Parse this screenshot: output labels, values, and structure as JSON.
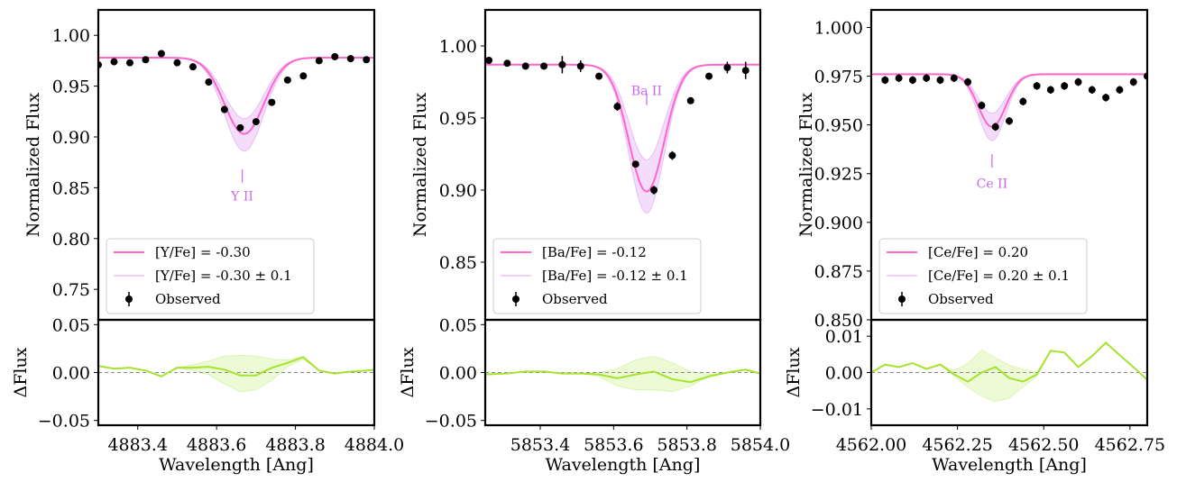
{
  "chart_data": [
    {
      "type": "line",
      "title": "",
      "xlabel": "Wavelength [Ang]",
      "ylabel": "Normalized Flux",
      "resid_ylabel": "ΔFlux",
      "xlim": [
        4883.3,
        4884.0
      ],
      "ylim": [
        0.72,
        1.025
      ],
      "resid_ylim": [
        -0.055,
        0.055
      ],
      "xticks": [
        "4883.4",
        "4883.6",
        "4883.8",
        "4884.0"
      ],
      "yticks": [
        "0.75",
        "0.80",
        "0.85",
        "0.90",
        "0.95",
        "1.00"
      ],
      "resid_yticks": [
        "−0.05",
        "0.00",
        "0.05"
      ],
      "annotation": {
        "label": "Y II",
        "x": 4883.665,
        "y_tick": [
          0.855,
          0.868
        ],
        "y_text": 0.842
      },
      "legend": [
        "[Y/Fe] = -0.30",
        "[Y/Fe] = -0.30 ± 0.1",
        "Observed"
      ],
      "model": {
        "continuum": 0.978,
        "center": 4883.67,
        "depth": 0.075,
        "sigma": 0.05,
        "depth_lo": 0.06,
        "depth_hi": 0.092
      },
      "observed": {
        "x": [
          4883.3,
          4883.34,
          4883.38,
          4883.42,
          4883.46,
          4883.5,
          4883.54,
          4883.58,
          4883.62,
          4883.66,
          4883.7,
          4883.74,
          4883.78,
          4883.82,
          4883.86,
          4883.9,
          4883.94,
          4883.98
        ],
        "y": [
          0.971,
          0.974,
          0.973,
          0.976,
          0.982,
          0.973,
          0.969,
          0.954,
          0.927,
          0.909,
          0.915,
          0.934,
          0.956,
          0.96,
          0.975,
          0.979,
          0.977,
          0.976
        ],
        "err": [
          0.002,
          0.002,
          0.002,
          0.002,
          0.002,
          0.002,
          0.002,
          0.002,
          0.002,
          0.002,
          0.002,
          0.002,
          0.002,
          0.002,
          0.002,
          0.002,
          0.002,
          0.002
        ]
      },
      "residual": {
        "x": [
          4883.3,
          4883.34,
          4883.38,
          4883.42,
          4883.46,
          4883.5,
          4883.54,
          4883.58,
          4883.62,
          4883.66,
          4883.7,
          4883.74,
          4883.78,
          4883.82,
          4883.86,
          4883.9,
          4883.94,
          4883.98,
          4884.0
        ],
        "y": [
          0.007,
          0.004,
          0.005,
          0.002,
          -0.004,
          0.005,
          0.005,
          0.006,
          0.003,
          -0.003,
          -0.003,
          0.005,
          0.01,
          0.016,
          0.002,
          -0.001,
          0.001,
          0.002,
          0.003
        ],
        "band_lo": [
          0.007,
          0.004,
          0.005,
          0.002,
          -0.004,
          0.005,
          0.002,
          -0.002,
          -0.012,
          -0.02,
          -0.018,
          -0.008,
          0.006,
          0.014,
          0.002,
          -0.001,
          0.001,
          0.002,
          0.003
        ],
        "band_hi": [
          0.007,
          0.004,
          0.005,
          0.002,
          -0.004,
          0.005,
          0.008,
          0.012,
          0.017,
          0.018,
          0.017,
          0.014,
          0.013,
          0.017,
          0.002,
          -0.001,
          0.001,
          0.002,
          0.003
        ]
      }
    },
    {
      "type": "line",
      "title": "",
      "xlabel": "Wavelength [Ang]",
      "ylabel": "Normalized Flux",
      "resid_ylabel": "ΔFlux",
      "xlim": [
        5853.25,
        5854.0
      ],
      "ylim": [
        0.81,
        1.025
      ],
      "resid_ylim": [
        -0.055,
        0.055
      ],
      "xticks": [
        "5853.4",
        "5853.6",
        "5853.8",
        "5854.0"
      ],
      "yticks": [
        "0.85",
        "0.90",
        "0.95",
        "1.00"
      ],
      "resid_yticks": [
        "−0.05",
        "0.00",
        "0.05"
      ],
      "annotation": {
        "label": "Ba II",
        "x": 5853.69,
        "y_tick": [
          0.959,
          0.967
        ],
        "y_text": 0.969
      },
      "legend": [
        "[Ba/Fe] = -0.12",
        "[Ba/Fe] = -0.12 ± 0.1",
        "Observed"
      ],
      "model": {
        "continuum": 0.987,
        "center": 5853.69,
        "depth": 0.088,
        "sigma": 0.048,
        "depth_lo": 0.066,
        "depth_hi": 0.103
      },
      "observed": {
        "x": [
          5853.26,
          5853.31,
          5853.36,
          5853.41,
          5853.46,
          5853.51,
          5853.56,
          5853.61,
          5853.66,
          5853.71,
          5853.76,
          5853.81,
          5853.86,
          5853.91,
          5853.96
        ],
        "y": [
          0.99,
          0.988,
          0.986,
          0.986,
          0.987,
          0.986,
          0.979,
          0.958,
          0.918,
          0.9,
          0.924,
          0.962,
          0.979,
          0.985,
          0.983
        ],
        "err": [
          0.002,
          0.002,
          0.002,
          0.002,
          0.006,
          0.004,
          0.002,
          0.003,
          0.002,
          0.003,
          0.003,
          0.002,
          0.002,
          0.004,
          0.006
        ]
      },
      "residual": {
        "x": [
          5853.25,
          5853.31,
          5853.36,
          5853.41,
          5853.46,
          5853.51,
          5853.56,
          5853.61,
          5853.66,
          5853.71,
          5853.76,
          5853.81,
          5853.86,
          5853.91,
          5853.96,
          5854.0
        ],
        "y": [
          -0.002,
          -0.001,
          0.001,
          0.001,
          -0.001,
          -0.001,
          -0.002,
          -0.006,
          -0.002,
          0.001,
          -0.007,
          -0.01,
          -0.004,
          0.0,
          0.003,
          -0.001
        ],
        "band_lo": [
          -0.002,
          -0.001,
          0.001,
          0.001,
          -0.001,
          -0.001,
          -0.004,
          -0.014,
          -0.018,
          -0.018,
          -0.02,
          -0.014,
          -0.004,
          0.0,
          0.003,
          -0.001
        ],
        "band_hi": [
          -0.002,
          -0.001,
          0.001,
          0.001,
          -0.001,
          -0.001,
          0.0,
          0.004,
          0.013,
          0.017,
          0.01,
          0.001,
          -0.002,
          0.0,
          0.003,
          -0.001
        ]
      }
    },
    {
      "type": "line",
      "title": "",
      "xlabel": "Wavelength [Ang]",
      "ylabel": "Normalized Flux",
      "resid_ylabel": "ΔFlux",
      "xlim": [
        4562.0,
        4562.8
      ],
      "ylim": [
        0.85,
        1.009
      ],
      "resid_ylim": [
        -0.0145,
        0.0145
      ],
      "xticks": [
        "4562.00",
        "4562.25",
        "4562.50",
        "4562.75"
      ],
      "yticks": [
        "0.850",
        "0.875",
        "0.900",
        "0.925",
        "0.950",
        "0.975",
        "1.000"
      ],
      "resid_yticks": [
        "−0.01",
        "0.00",
        "0.01"
      ],
      "annotation": {
        "label": "Ce II",
        "x": 4562.35,
        "y_tick": [
          0.928,
          0.935
        ],
        "y_text": 0.92
      },
      "legend": [
        "[Ce/Fe] = 0.20",
        "[Ce/Fe] = 0.20 ± 0.1",
        "Observed"
      ],
      "model": {
        "continuum": 0.976,
        "center": 4562.35,
        "depth": 0.027,
        "sigma": 0.04,
        "depth_lo": 0.02,
        "depth_hi": 0.034
      },
      "observed": {
        "x": [
          4562.04,
          4562.08,
          4562.12,
          4562.16,
          4562.2,
          4562.24,
          4562.28,
          4562.32,
          4562.36,
          4562.4,
          4562.44,
          4562.48,
          4562.52,
          4562.56,
          4562.6,
          4562.64,
          4562.68,
          4562.72,
          4562.76,
          4562.8
        ],
        "y": [
          0.973,
          0.974,
          0.973,
          0.974,
          0.973,
          0.974,
          0.972,
          0.96,
          0.949,
          0.952,
          0.962,
          0.97,
          0.968,
          0.97,
          0.972,
          0.968,
          0.964,
          0.968,
          0.972,
          0.975
        ],
        "err": [
          0.002,
          0.002,
          0.002,
          0.002,
          0.002,
          0.002,
          0.002,
          0.002,
          0.002,
          0.002,
          0.002,
          0.002,
          0.002,
          0.002,
          0.002,
          0.002,
          0.002,
          0.002,
          0.002,
          0.002
        ]
      },
      "residual": {
        "x": [
          4562.0,
          4562.04,
          4562.08,
          4562.12,
          4562.16,
          4562.2,
          4562.24,
          4562.28,
          4562.32,
          4562.36,
          4562.4,
          4562.44,
          4562.48,
          4562.52,
          4562.56,
          4562.6,
          4562.64,
          4562.68,
          4562.72,
          4562.76,
          4562.8
        ],
        "y": [
          0.0,
          0.0022,
          0.0015,
          0.0026,
          0.001,
          0.0022,
          -0.0005,
          -0.0025,
          0.0,
          0.0015,
          -0.0015,
          -0.0025,
          -0.0005,
          0.006,
          0.0055,
          0.0015,
          0.0045,
          0.0082,
          0.0048,
          0.0015,
          -0.002
        ],
        "band_lo": [
          0.0,
          0.0022,
          0.0015,
          0.0026,
          0.001,
          0.0022,
          -0.001,
          -0.004,
          -0.0065,
          -0.008,
          -0.007,
          -0.004,
          -0.001,
          0.006,
          0.0055,
          0.0015,
          0.0045,
          0.0082,
          0.0048,
          0.0015,
          -0.002
        ],
        "band_hi": [
          0.0,
          0.0022,
          0.0015,
          0.0026,
          0.001,
          0.0022,
          0.0005,
          0.0025,
          0.0062,
          0.004,
          0.002,
          0.001,
          0.0,
          0.006,
          0.0055,
          0.0015,
          0.0045,
          0.0082,
          0.0048,
          0.0015,
          -0.002
        ]
      }
    }
  ],
  "colors": {
    "model_line": "#ff66cc",
    "model_band": "#cc66ee",
    "residual_line": "#a6e22e",
    "residual_band": "#c9f08a",
    "observed": "#000000",
    "annotation": "#cc66ee"
  }
}
